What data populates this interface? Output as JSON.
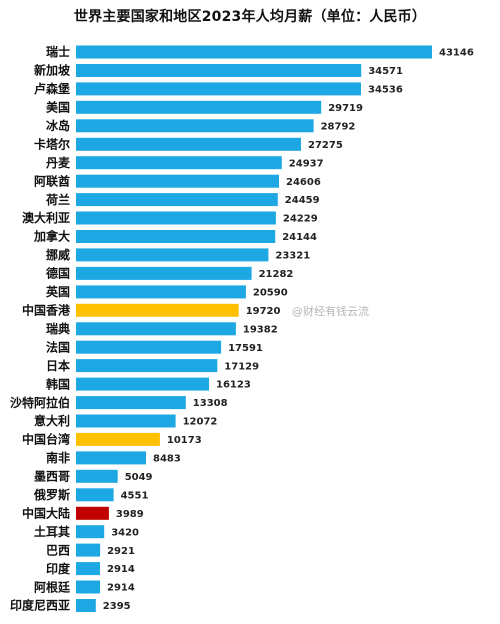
{
  "chart_data": {
    "type": "bar",
    "orientation": "horizontal",
    "title": "世界主要国家和地区2023年人均月薪（单位：人民币）",
    "categories": [
      "瑞士",
      "新加坡",
      "卢森堡",
      "美国",
      "冰岛",
      "卡塔尔",
      "丹麦",
      "阿联酋",
      "荷兰",
      "澳大利亚",
      "加拿大",
      "挪威",
      "德国",
      "英国",
      "中国香港",
      "瑞典",
      "法国",
      "日本",
      "韩国",
      "沙特阿拉伯",
      "意大利",
      "中国台湾",
      "南非",
      "墨西哥",
      "俄罗斯",
      "中国大陆",
      "土耳其",
      "巴西",
      "印度",
      "阿根廷",
      "印度尼西亚"
    ],
    "values": [
      43146,
      34571,
      34536,
      29719,
      28792,
      27275,
      24937,
      24606,
      24459,
      24229,
      24144,
      23321,
      21282,
      20590,
      19720,
      19382,
      17591,
      17129,
      16123,
      13308,
      12072,
      10173,
      8483,
      5049,
      4551,
      3989,
      3420,
      2921,
      2914,
      2914,
      2395
    ],
    "value_labels": [
      "43146",
      "34571",
      "34536",
      "29719",
      "28792",
      "27275",
      "24937",
      "24606",
      "24459",
      "24229",
      "24144",
      "23321",
      "21282",
      "20590",
      "19720",
      "19382",
      "17591",
      "17129",
      "16123",
      "13308",
      "12072",
      "10173",
      "8483",
      "5049",
      "4551",
      "3989",
      "3420",
      "2921",
      "2914",
      "2914",
      "2395"
    ],
    "colors": {
      "default": "#1DA7E3",
      "highlight_yellow": "#FFC000",
      "highlight_red": "#C00000"
    },
    "bar_colors": [
      "default",
      "default",
      "default",
      "default",
      "default",
      "default",
      "default",
      "default",
      "default",
      "default",
      "default",
      "default",
      "default",
      "default",
      "highlight_yellow",
      "default",
      "default",
      "default",
      "default",
      "default",
      "default",
      "highlight_yellow",
      "default",
      "default",
      "default",
      "highlight_red",
      "default",
      "default",
      "default",
      "default",
      "default"
    ],
    "grid": false,
    "legend": "none"
  },
  "watermark": "@财经有钱云流"
}
